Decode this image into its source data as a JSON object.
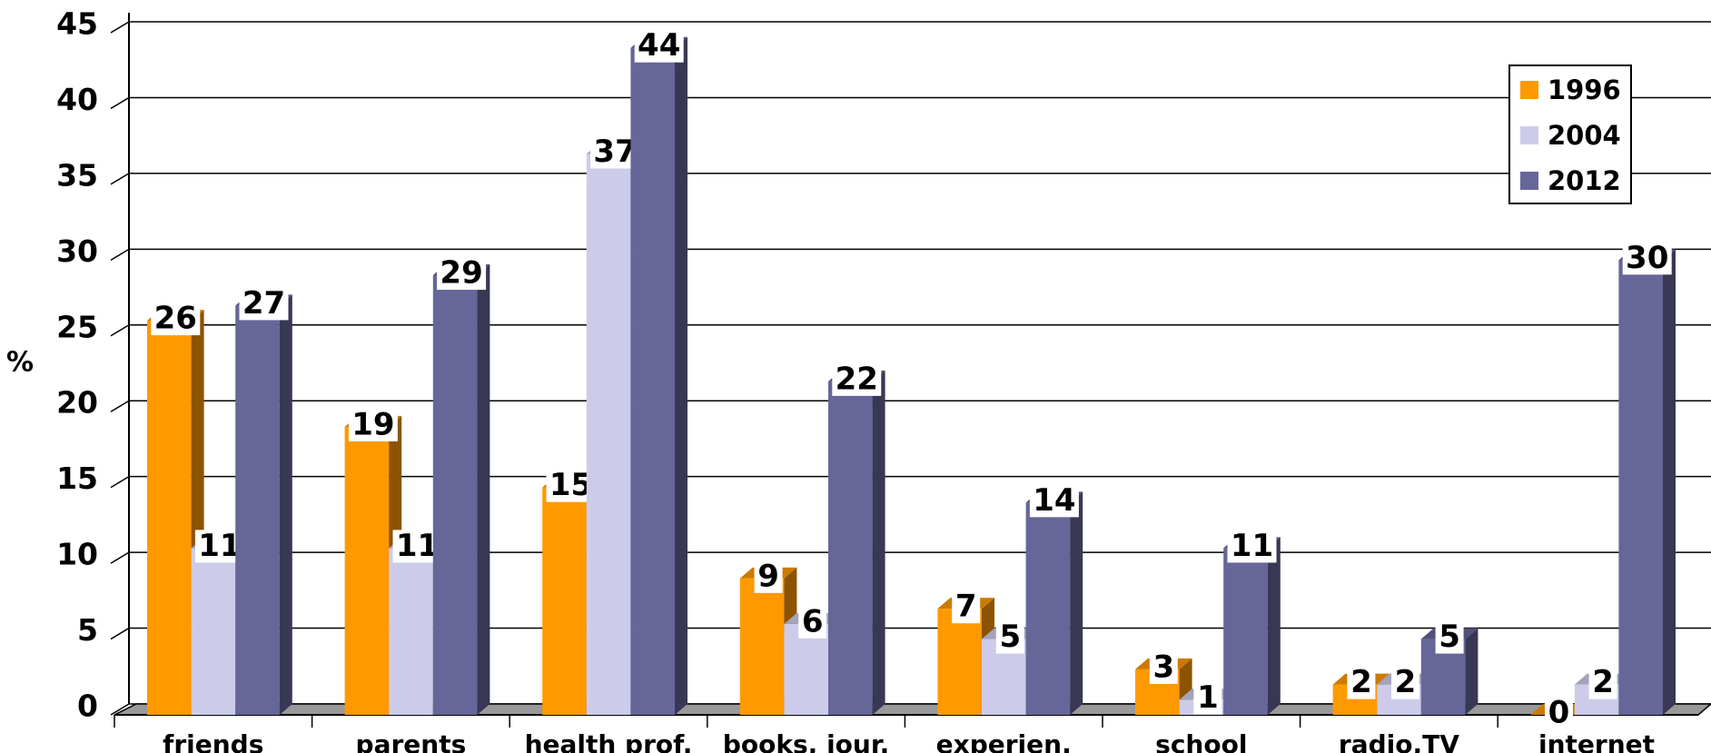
{
  "chart_data": {
    "type": "bar3d",
    "y_label": "%",
    "categories": [
      "friends",
      "parents",
      "health prof.",
      "books, jour.",
      "experien.",
      "school",
      "radio,TV",
      "internet"
    ],
    "series": [
      {
        "name": "1996",
        "color": "#ff9900",
        "values": [
          26,
          19,
          15,
          9,
          7,
          3,
          2,
          0
        ]
      },
      {
        "name": "2004",
        "color": "#ccccea",
        "values": [
          11,
          11,
          37,
          6,
          5,
          1,
          2,
          2
        ]
      },
      {
        "name": "2012",
        "color": "#666699",
        "values": [
          27,
          29,
          44,
          22,
          14,
          11,
          5,
          30
        ]
      }
    ],
    "ylim": [
      0,
      45
    ],
    "yticks": [
      0,
      5,
      10,
      15,
      20,
      25,
      30,
      35,
      40,
      45
    ],
    "grid": true,
    "legend": "top-right"
  }
}
